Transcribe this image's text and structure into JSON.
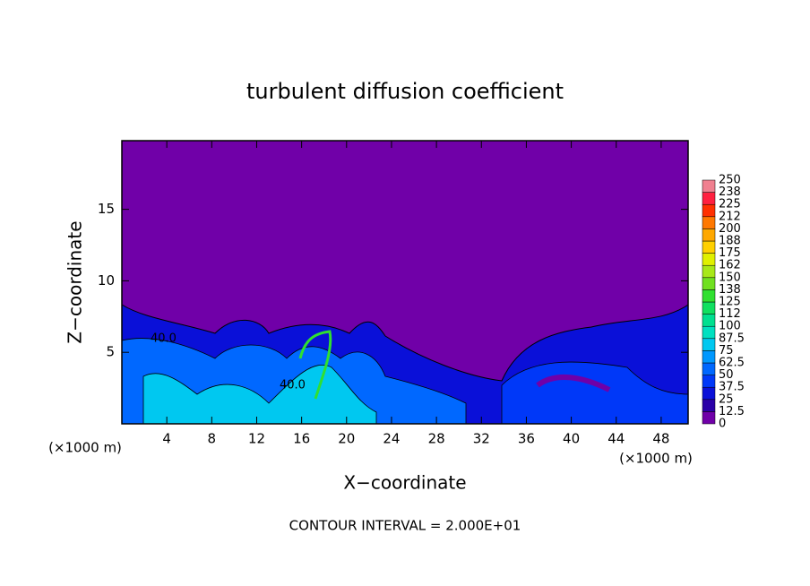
{
  "chart_data": {
    "type": "contour",
    "title": "turbulent diffusion coefficient",
    "x_label": "X−coordinate",
    "y_label": "Z−coordinate",
    "x_unit": "(×1000 m)",
    "footer": "CONTOUR INTERVAL = 2.000E+01",
    "contour_label": "40.0",
    "xlim": [
      0,
      50.4
    ],
    "xticks": [
      4,
      8,
      12,
      16,
      20,
      24,
      28,
      32,
      36,
      40,
      44,
      48
    ],
    "ylim": [
      0,
      19.8
    ],
    "yticks": [
      5,
      10,
      15
    ],
    "colorbar": {
      "ticks": [
        0,
        12.5,
        25,
        37.5,
        50,
        62.5,
        75,
        87.5,
        100,
        112,
        125,
        138,
        150,
        162,
        175,
        188,
        200,
        212,
        225,
        238,
        250
      ],
      "colors": [
        "#7000a8",
        "#2a00a8",
        "#0a10d8",
        "#0038f8",
        "#0068ff",
        "#0098ff",
        "#00c8f0",
        "#00e0c0",
        "#00e090",
        "#10e060",
        "#30e030",
        "#70e020",
        "#a8e818",
        "#e0f000",
        "#ffd000",
        "#ffa800",
        "#ff7800",
        "#ff3000",
        "#ff2040",
        "#f08090"
      ]
    }
  }
}
